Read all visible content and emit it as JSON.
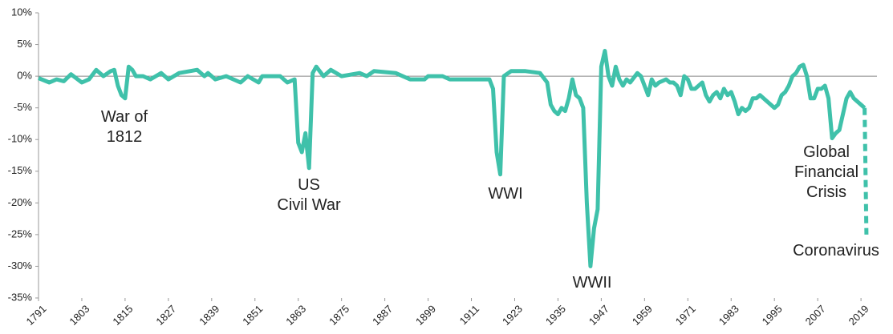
{
  "chart_data": {
    "type": "line",
    "xlim": [
      1791,
      2022
    ],
    "ylim": [
      -35,
      10
    ],
    "yticks": [
      {
        "value": 10,
        "label": "10%"
      },
      {
        "value": 5,
        "label": "5%"
      },
      {
        "value": 0,
        "label": "0%"
      },
      {
        "value": -5,
        "label": "-5%"
      },
      {
        "value": -10,
        "label": "-10%"
      },
      {
        "value": -15,
        "label": "-15%"
      },
      {
        "value": -20,
        "label": "-20%"
      },
      {
        "value": -25,
        "label": "-25%"
      },
      {
        "value": -30,
        "label": "-30%"
      },
      {
        "value": -35,
        "label": "-35%"
      }
    ],
    "xticks": [
      1791,
      1803,
      1815,
      1827,
      1839,
      1851,
      1863,
      1875,
      1887,
      1899,
      1911,
      1923,
      1935,
      1947,
      1959,
      1971,
      1983,
      1995,
      2007,
      2019
    ],
    "zero_line": true,
    "annotations": [
      [
        "War of",
        "1812"
      ],
      [
        "US",
        "Civil War"
      ],
      [
        "WWI"
      ],
      [
        "WWII"
      ],
      [
        "Global",
        "Financial",
        "Crisis"
      ],
      [
        "Coronavirus"
      ]
    ],
    "series": [
      {
        "color": "#3fc1aa",
        "line_style": "solid",
        "x": [
          1791,
          1794,
          1796,
          1798,
          1800,
          1803,
          1805,
          1807,
          1809,
          1811,
          1812,
          1813,
          1814,
          1815,
          1816,
          1817,
          1818,
          1820,
          1822,
          1825,
          1827,
          1830,
          1835,
          1837,
          1838,
          1840,
          1843,
          1847,
          1849,
          1852,
          1853,
          1858,
          1860,
          1862,
          1863,
          1864,
          1865,
          1866,
          1867,
          1868,
          1870,
          1872,
          1875,
          1880,
          1882,
          1884,
          1890,
          1894,
          1898,
          1899,
          1903,
          1905,
          1910,
          1916,
          1917,
          1918,
          1919,
          1920,
          1922,
          1926,
          1930,
          1932,
          1933,
          1934,
          1935,
          1936,
          1937,
          1938,
          1939,
          1940,
          1941,
          1942,
          1943,
          1944,
          1945,
          1946,
          1947,
          1948,
          1949,
          1950,
          1951,
          1952,
          1953,
          1954,
          1955,
          1957,
          1958,
          1959,
          1960,
          1961,
          1962,
          1963,
          1965,
          1966,
          1967,
          1968,
          1969,
          1970,
          1971,
          1972,
          1973,
          1975,
          1976,
          1977,
          1978,
          1979,
          1980,
          1981,
          1982,
          1983,
          1984,
          1985,
          1986,
          1987,
          1988,
          1989,
          1990,
          1991,
          1992,
          1993,
          1994,
          1995,
          1996,
          1997,
          1998,
          1999,
          2000,
          2001,
          2002,
          2003,
          2004,
          2005,
          2006,
          2007,
          2008,
          2009,
          2010,
          2011,
          2012,
          2013,
          2014,
          2015,
          2016,
          2017,
          2018,
          2019,
          2020
        ],
        "values": [
          -0.3,
          -1,
          -0.5,
          -0.8,
          0.3,
          -1,
          -0.5,
          1,
          0,
          0.8,
          1,
          -1.5,
          -3,
          -3.5,
          1.5,
          1,
          0,
          0,
          -0.5,
          0.5,
          -0.5,
          0.5,
          1,
          0,
          0.5,
          -0.5,
          0,
          -1,
          0,
          -1,
          0,
          0,
          -1,
          -0.5,
          -10.5,
          -12,
          -9,
          -14.5,
          0.5,
          1.5,
          0,
          1,
          0,
          0.5,
          0,
          0.8,
          0.5,
          -0.5,
          -0.5,
          0,
          0,
          -0.5,
          -0.5,
          -0.5,
          -2,
          -12,
          -15.5,
          0,
          0.8,
          0.8,
          0.5,
          -1,
          -4.5,
          -5.5,
          -6,
          -5,
          -5.5,
          -3.5,
          -0.5,
          -3,
          -3.5,
          -5,
          -20,
          -30,
          -24,
          -21,
          1.5,
          4,
          0,
          -1.5,
          1.5,
          -0.5,
          -1.5,
          -0.5,
          -1,
          0.5,
          0,
          -1.5,
          -3,
          -0.5,
          -1.5,
          -1,
          -0.5,
          -1,
          -1,
          -1.5,
          -3,
          0,
          -0.5,
          -2,
          -2,
          -1,
          -3,
          -4,
          -3,
          -2.5,
          -3.5,
          -2,
          -3,
          -2.5,
          -4,
          -6,
          -5,
          -5.5,
          -5,
          -3.5,
          -3.5,
          -3,
          -3.5,
          -4,
          -4.5,
          -5,
          -4.5,
          -3,
          -2.5,
          -1.5,
          0,
          0.5,
          1.5,
          1.8,
          0,
          -3.5,
          -3.5,
          -2,
          -2,
          -1.5,
          -3.5,
          -9.8,
          -9,
          -8.5,
          -6,
          -3.5,
          -2.5,
          -3.5,
          -4,
          -4.5,
          -5
        ]
      },
      {
        "color": "#3fc1aa",
        "line_style": "dashed",
        "x": [
          2020,
          2020.5
        ],
        "values": [
          -5,
          -25
        ]
      }
    ]
  }
}
